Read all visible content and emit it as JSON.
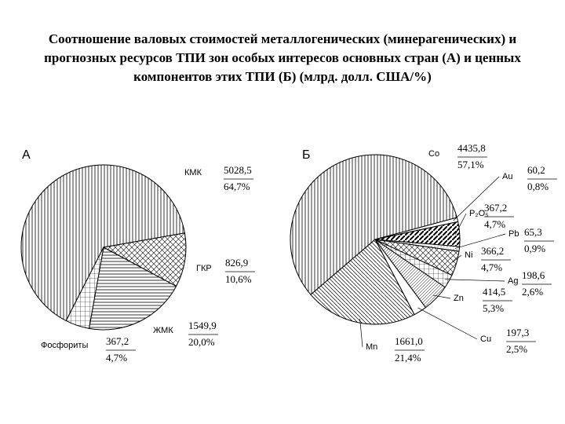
{
  "title": "Соотношение валовых стоимостей металлогенических (минерагенических) и прогнозных ресурсов ТПИ зон особых интересов основных стран (А) и ценных компонентов этих ТПИ (Б) (млрд. долл. США/%)",
  "chart_data": [
    {
      "type": "pie",
      "label": "А",
      "categories": [
        "КМК",
        "ГКР",
        "ЖМК",
        "Фосфориты"
      ],
      "values": [
        64.7,
        10.6,
        20.0,
        4.7
      ],
      "value_labels": [
        "64,7%",
        "10,6%",
        "20,0%",
        "4,7%"
      ],
      "amounts": [
        5028.5,
        826.9,
        1549.9,
        367.2
      ],
      "amount_labels": [
        "5028,5",
        "826,9",
        "1549,9",
        "367,2"
      ]
    },
    {
      "type": "pie",
      "label": "Б",
      "categories": [
        "Co",
        "Au",
        "P₂O₅",
        "Pb",
        "Ni",
        "Ag",
        "Zn",
        "Cu",
        "Mn"
      ],
      "values": [
        57.1,
        0.8,
        4.7,
        0.9,
        4.7,
        2.6,
        5.3,
        2.5,
        21.4
      ],
      "value_labels": [
        "57,1%",
        "0,8%",
        "4,7%",
        "0,9%",
        "4,7%",
        "2,6%",
        "5,3%",
        "2,5%",
        "21,4%"
      ],
      "amounts": [
        4435.8,
        60.2,
        367.2,
        65.3,
        366.2,
        198.6,
        414.5,
        197.3,
        1661.0
      ],
      "amount_labels": [
        "4435,8",
        "60,2",
        "367,2",
        "65,3",
        "366,2",
        "198,6",
        "414,5",
        "197,3",
        "1661,0"
      ]
    }
  ]
}
